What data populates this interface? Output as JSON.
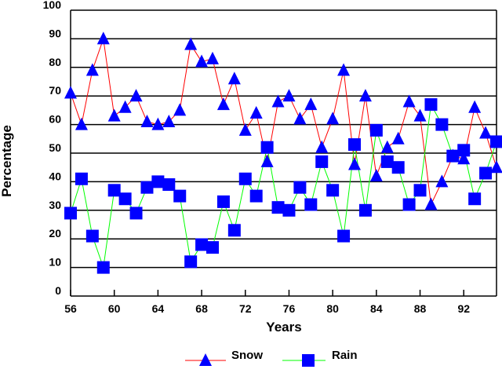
{
  "chart_data": {
    "type": "line",
    "title": "",
    "xlabel": "Years",
    "ylabel": "Percentage",
    "xlim": [
      56,
      95
    ],
    "ylim": [
      0,
      100
    ],
    "grid": "horizontal",
    "x_ticks": [
      "56",
      "60",
      "64",
      "68",
      "72",
      "76",
      "80",
      "84",
      "88",
      "92"
    ],
    "y_ticks": [
      "0",
      "10",
      "20",
      "30",
      "40",
      "50",
      "60",
      "70",
      "80",
      "90",
      "100"
    ],
    "x": [
      56,
      57,
      58,
      59,
      60,
      61,
      62,
      63,
      64,
      65,
      66,
      67,
      68,
      69,
      70,
      71,
      72,
      73,
      74,
      75,
      76,
      77,
      78,
      79,
      80,
      81,
      82,
      83,
      84,
      85,
      86,
      87,
      88,
      89,
      90,
      91,
      92,
      93,
      94,
      95
    ],
    "series": [
      {
        "name": "Snow",
        "line_color": "#ff0000",
        "marker": "triangle",
        "marker_color": "#0000ff",
        "values": [
          71,
          60,
          79,
          90,
          63,
          66,
          70,
          61,
          60,
          61,
          65,
          88,
          82,
          83,
          67,
          76,
          58,
          64,
          47,
          68,
          70,
          62,
          67,
          52,
          62,
          79,
          46,
          70,
          42,
          52,
          55,
          68,
          63,
          32,
          40,
          49,
          48,
          66,
          57,
          45
        ]
      },
      {
        "name": "Rain",
        "line_color": "#00ff00",
        "marker": "square",
        "marker_color": "#0000ff",
        "values": [
          29,
          41,
          21,
          10,
          37,
          34,
          29,
          38,
          40,
          39,
          35,
          12,
          18,
          17,
          33,
          23,
          41,
          35,
          52,
          31,
          30,
          38,
          32,
          47,
          37,
          21,
          53,
          30,
          58,
          47,
          45,
          32,
          37,
          67,
          60,
          49,
          51,
          34,
          43,
          54
        ]
      }
    ],
    "legend_position": "bottom-center"
  }
}
